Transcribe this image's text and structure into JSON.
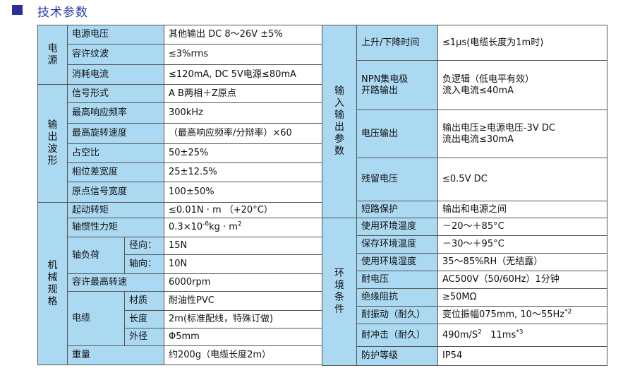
{
  "header": {
    "title": "技术参数",
    "accent_color": "#2a2f9c",
    "cell_color": "#acd9f2"
  },
  "left": {
    "groups": [
      {
        "label": "电源",
        "rows": [
          {
            "label": "电源电压",
            "value": [
              "其他输出 DC 8～26V ±5%"
            ]
          },
          {
            "label": "容许纹波",
            "value": [
              "≤3%rms"
            ]
          },
          {
            "label": "消耗电流",
            "value": [
              "≤120mA, DC 5V电源≤80mA"
            ]
          }
        ]
      },
      {
        "label": "输出波形",
        "rows": [
          {
            "label": "信号形式",
            "value": [
              "A B两相＋Z原点"
            ]
          },
          {
            "label": "最高响应频率",
            "value": [
              "300kHz"
            ]
          },
          {
            "label": "最高旋转速度",
            "value": [
              "（最高响应频率/分辩率）×60"
            ]
          },
          {
            "label": "占空比",
            "value": [
              "50±25%"
            ]
          },
          {
            "label": "相位差宽度",
            "value": [
              "25±12.5%"
            ]
          },
          {
            "label": "原点信号宽度",
            "value": [
              "100±50%"
            ]
          }
        ]
      },
      {
        "label": "机械规格",
        "rows": [
          {
            "label": "起动转矩",
            "value": [
              "≤0.01N · m （+20°C）"
            ]
          },
          {
            "label": "轴惯性力矩",
            "value": [
              "0.3×10",
              {
                "sup": "-6"
              },
              "kg · m",
              {
                "sup": "2"
              }
            ]
          },
          {
            "label": "轴负荷",
            "sub": [
              {
                "label": "径向：",
                "value": [
                  "15N"
                ]
              },
              {
                "label": "轴向：",
                "value": [
                  "10N"
                ]
              }
            ]
          },
          {
            "label": "容许最高转速",
            "value": [
              "6000rpm"
            ]
          },
          {
            "label": "电缆",
            "sub": [
              {
                "label": "材质",
                "value": [
                  "耐油性PVC"
                ]
              },
              {
                "label": "长度",
                "value": [
                  "2m(标准配线，特殊订做)"
                ]
              },
              {
                "label": "外径",
                "value": [
                  "Φ5mm"
                ]
              }
            ]
          },
          {
            "label": "重量",
            "value": [
              "约200g（电缆长度2m）"
            ]
          }
        ]
      }
    ]
  },
  "right": {
    "groups": [
      {
        "label": "输入输出参数",
        "rows": [
          {
            "label": "上升/下降时间",
            "value": [
              "≤1μs(电缆长度为1m时)"
            ]
          },
          {
            "label": "NPN集电极\n开路输出",
            "value": [
              "负逻辑（低电平有效）\n流入电流≤40mA"
            ]
          },
          {
            "label": "电压输出",
            "value": [
              "输出电压≥电源电压-3V DC\n流出电流≤30mA"
            ]
          },
          {
            "label": "残留电压",
            "value": [
              "≤0.5V DC"
            ]
          },
          {
            "label": "短路保护",
            "value": [
              "输出和电源之间"
            ]
          }
        ]
      },
      {
        "label": "环境条件",
        "rows": [
          {
            "label": "使用环境温度",
            "value": [
              "－20～＋85°C"
            ]
          },
          {
            "label": "保存环境温度",
            "value": [
              "－30～＋95°C"
            ]
          },
          {
            "label": "使用环境湿度",
            "value": [
              "35～85%RH（无结露）"
            ]
          },
          {
            "label": "耐电压",
            "value": [
              "AC500V（50/60Hz）1分钟"
            ]
          },
          {
            "label": "绝缘阻抗",
            "value": [
              "≥50MΩ"
            ]
          },
          {
            "label": "耐振动（耐久）",
            "value": [
              "变位振幅075mm, 10～55Hz",
              {
                "sup": "*2"
              }
            ]
          },
          {
            "label": "耐冲击（耐久）",
            "value": [
              "490m/S",
              {
                "sup": "2"
              },
              "   11ms",
              {
                "sup": "*3"
              }
            ]
          },
          {
            "label": "防护等级",
            "value": [
              "IP54"
            ]
          }
        ]
      }
    ]
  }
}
